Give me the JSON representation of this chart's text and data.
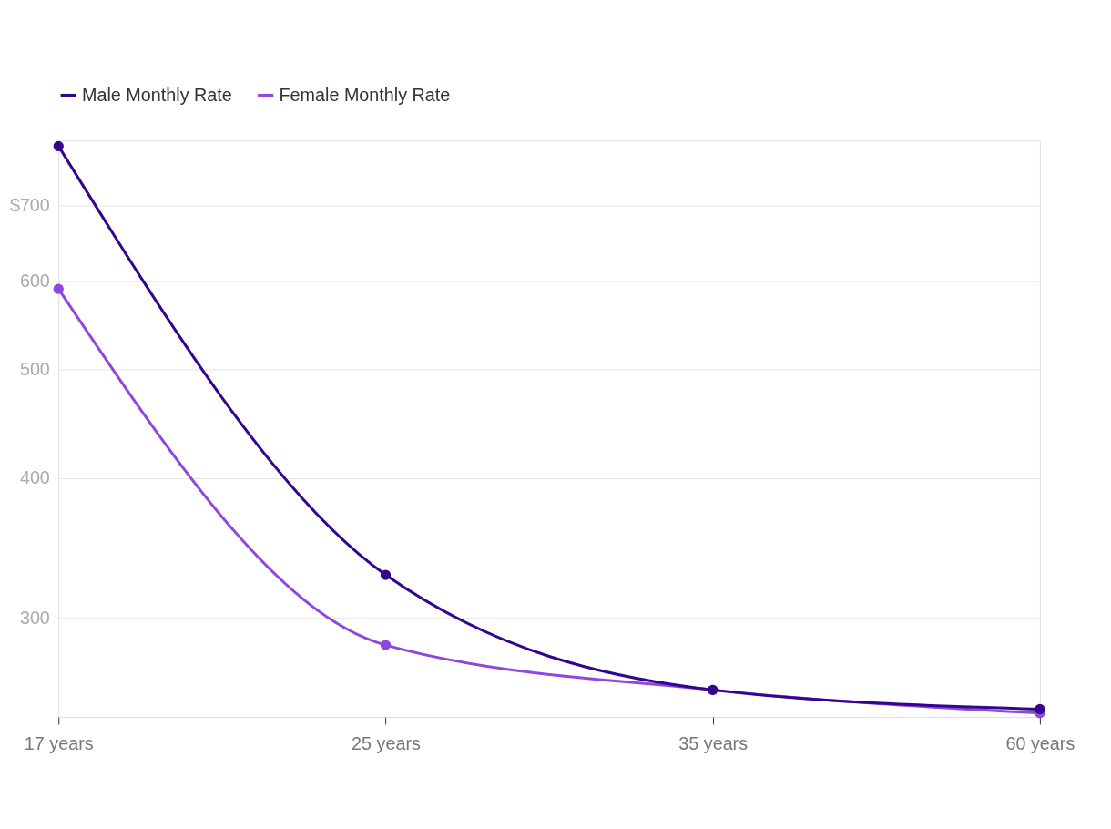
{
  "chart_data": {
    "type": "line",
    "categories": [
      "17 years",
      "25 years",
      "35 years",
      "60 years"
    ],
    "series": [
      {
        "name": "Male Monthly Rate",
        "color": "#33058d",
        "values": [
          791,
          328,
          259,
          249
        ]
      },
      {
        "name": "Female Monthly Rate",
        "color": "#8f47de",
        "values": [
          590,
          284,
          259,
          247
        ]
      }
    ],
    "log": true,
    "ylim": [
      245,
      800
    ],
    "yticks": [
      300,
      400,
      500,
      600,
      {
        "value": 700,
        "label": "$700"
      }
    ],
    "grid": "y",
    "legend": "top left",
    "marker": "circle",
    "line_style": "solid"
  }
}
